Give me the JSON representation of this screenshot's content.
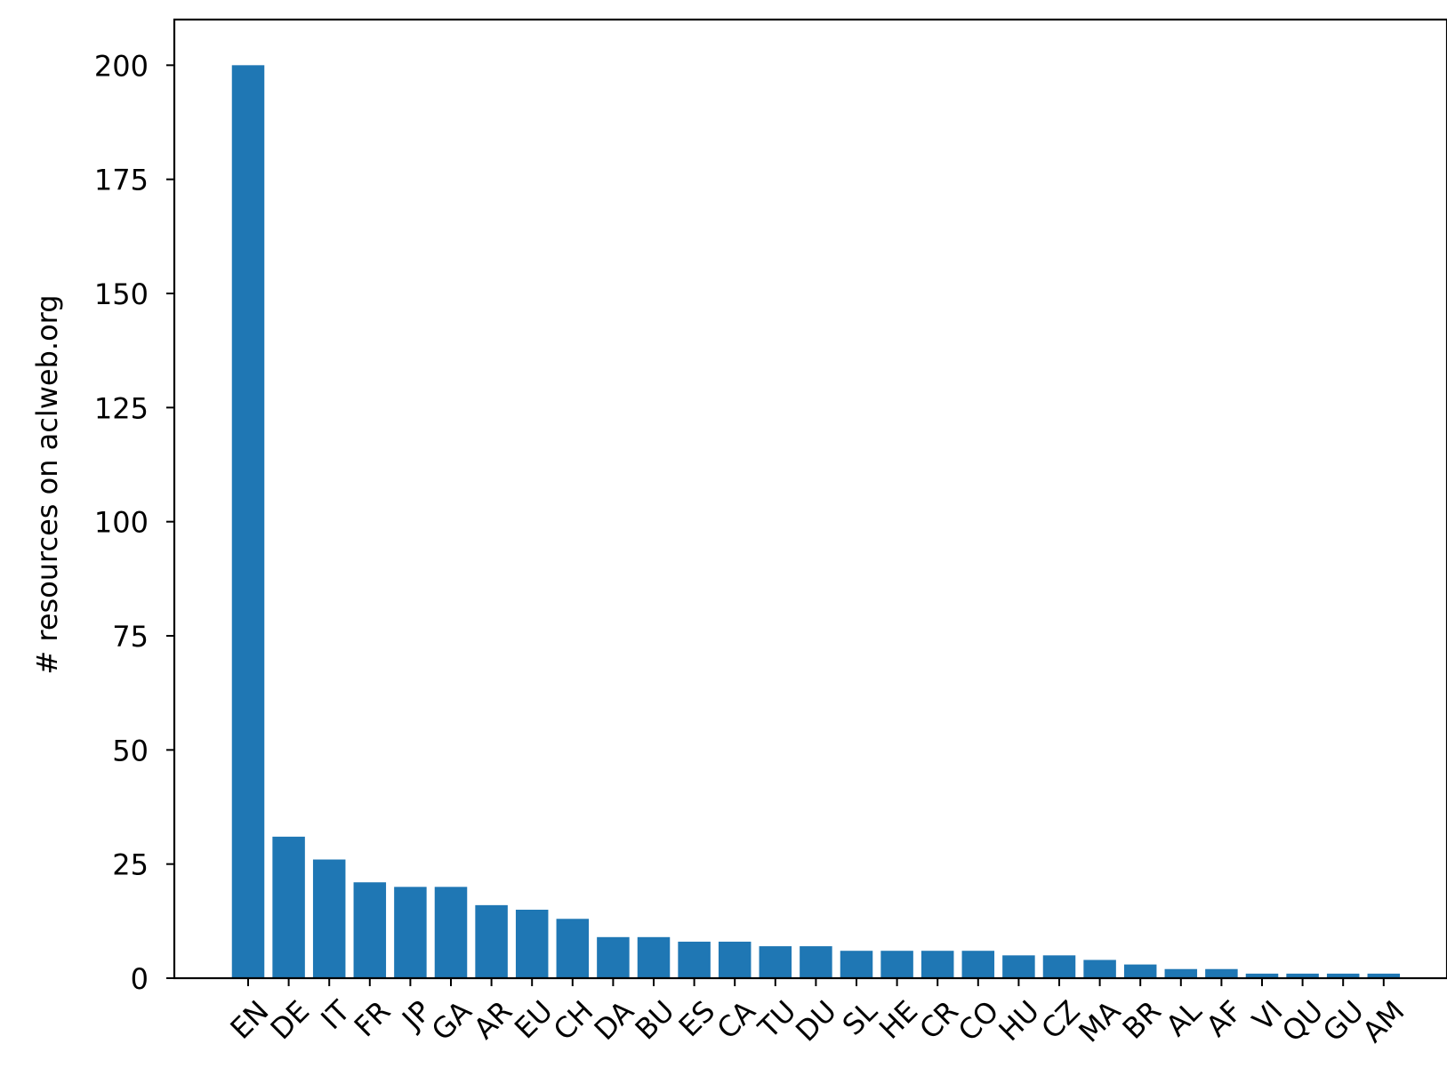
{
  "chart_data": {
    "type": "bar",
    "title": "",
    "xlabel": "",
    "ylabel": "# resources on aclweb.org",
    "categories": [
      "EN",
      "DE",
      "IT",
      "FR",
      "JP",
      "GA",
      "AR",
      "EU",
      "CH",
      "DA",
      "BU",
      "ES",
      "CA",
      "TU",
      "DU",
      "SL",
      "HE",
      "CR",
      "CO",
      "HU",
      "CZ",
      "MA",
      "BR",
      "AL",
      "AF",
      "VI",
      "QU",
      "GU",
      "AM"
    ],
    "values": [
      200,
      31,
      26,
      21,
      20,
      20,
      16,
      15,
      13,
      9,
      9,
      8,
      8,
      7,
      7,
      6,
      6,
      6,
      6,
      5,
      5,
      4,
      3,
      2,
      2,
      1,
      1,
      1,
      1
    ],
    "ylim": [
      0,
      210
    ],
    "yticks": [
      0,
      25,
      50,
      75,
      100,
      125,
      150,
      175,
      200
    ],
    "grid": false,
    "bar_color": "#1f77b4",
    "axis_color": "#000000"
  }
}
